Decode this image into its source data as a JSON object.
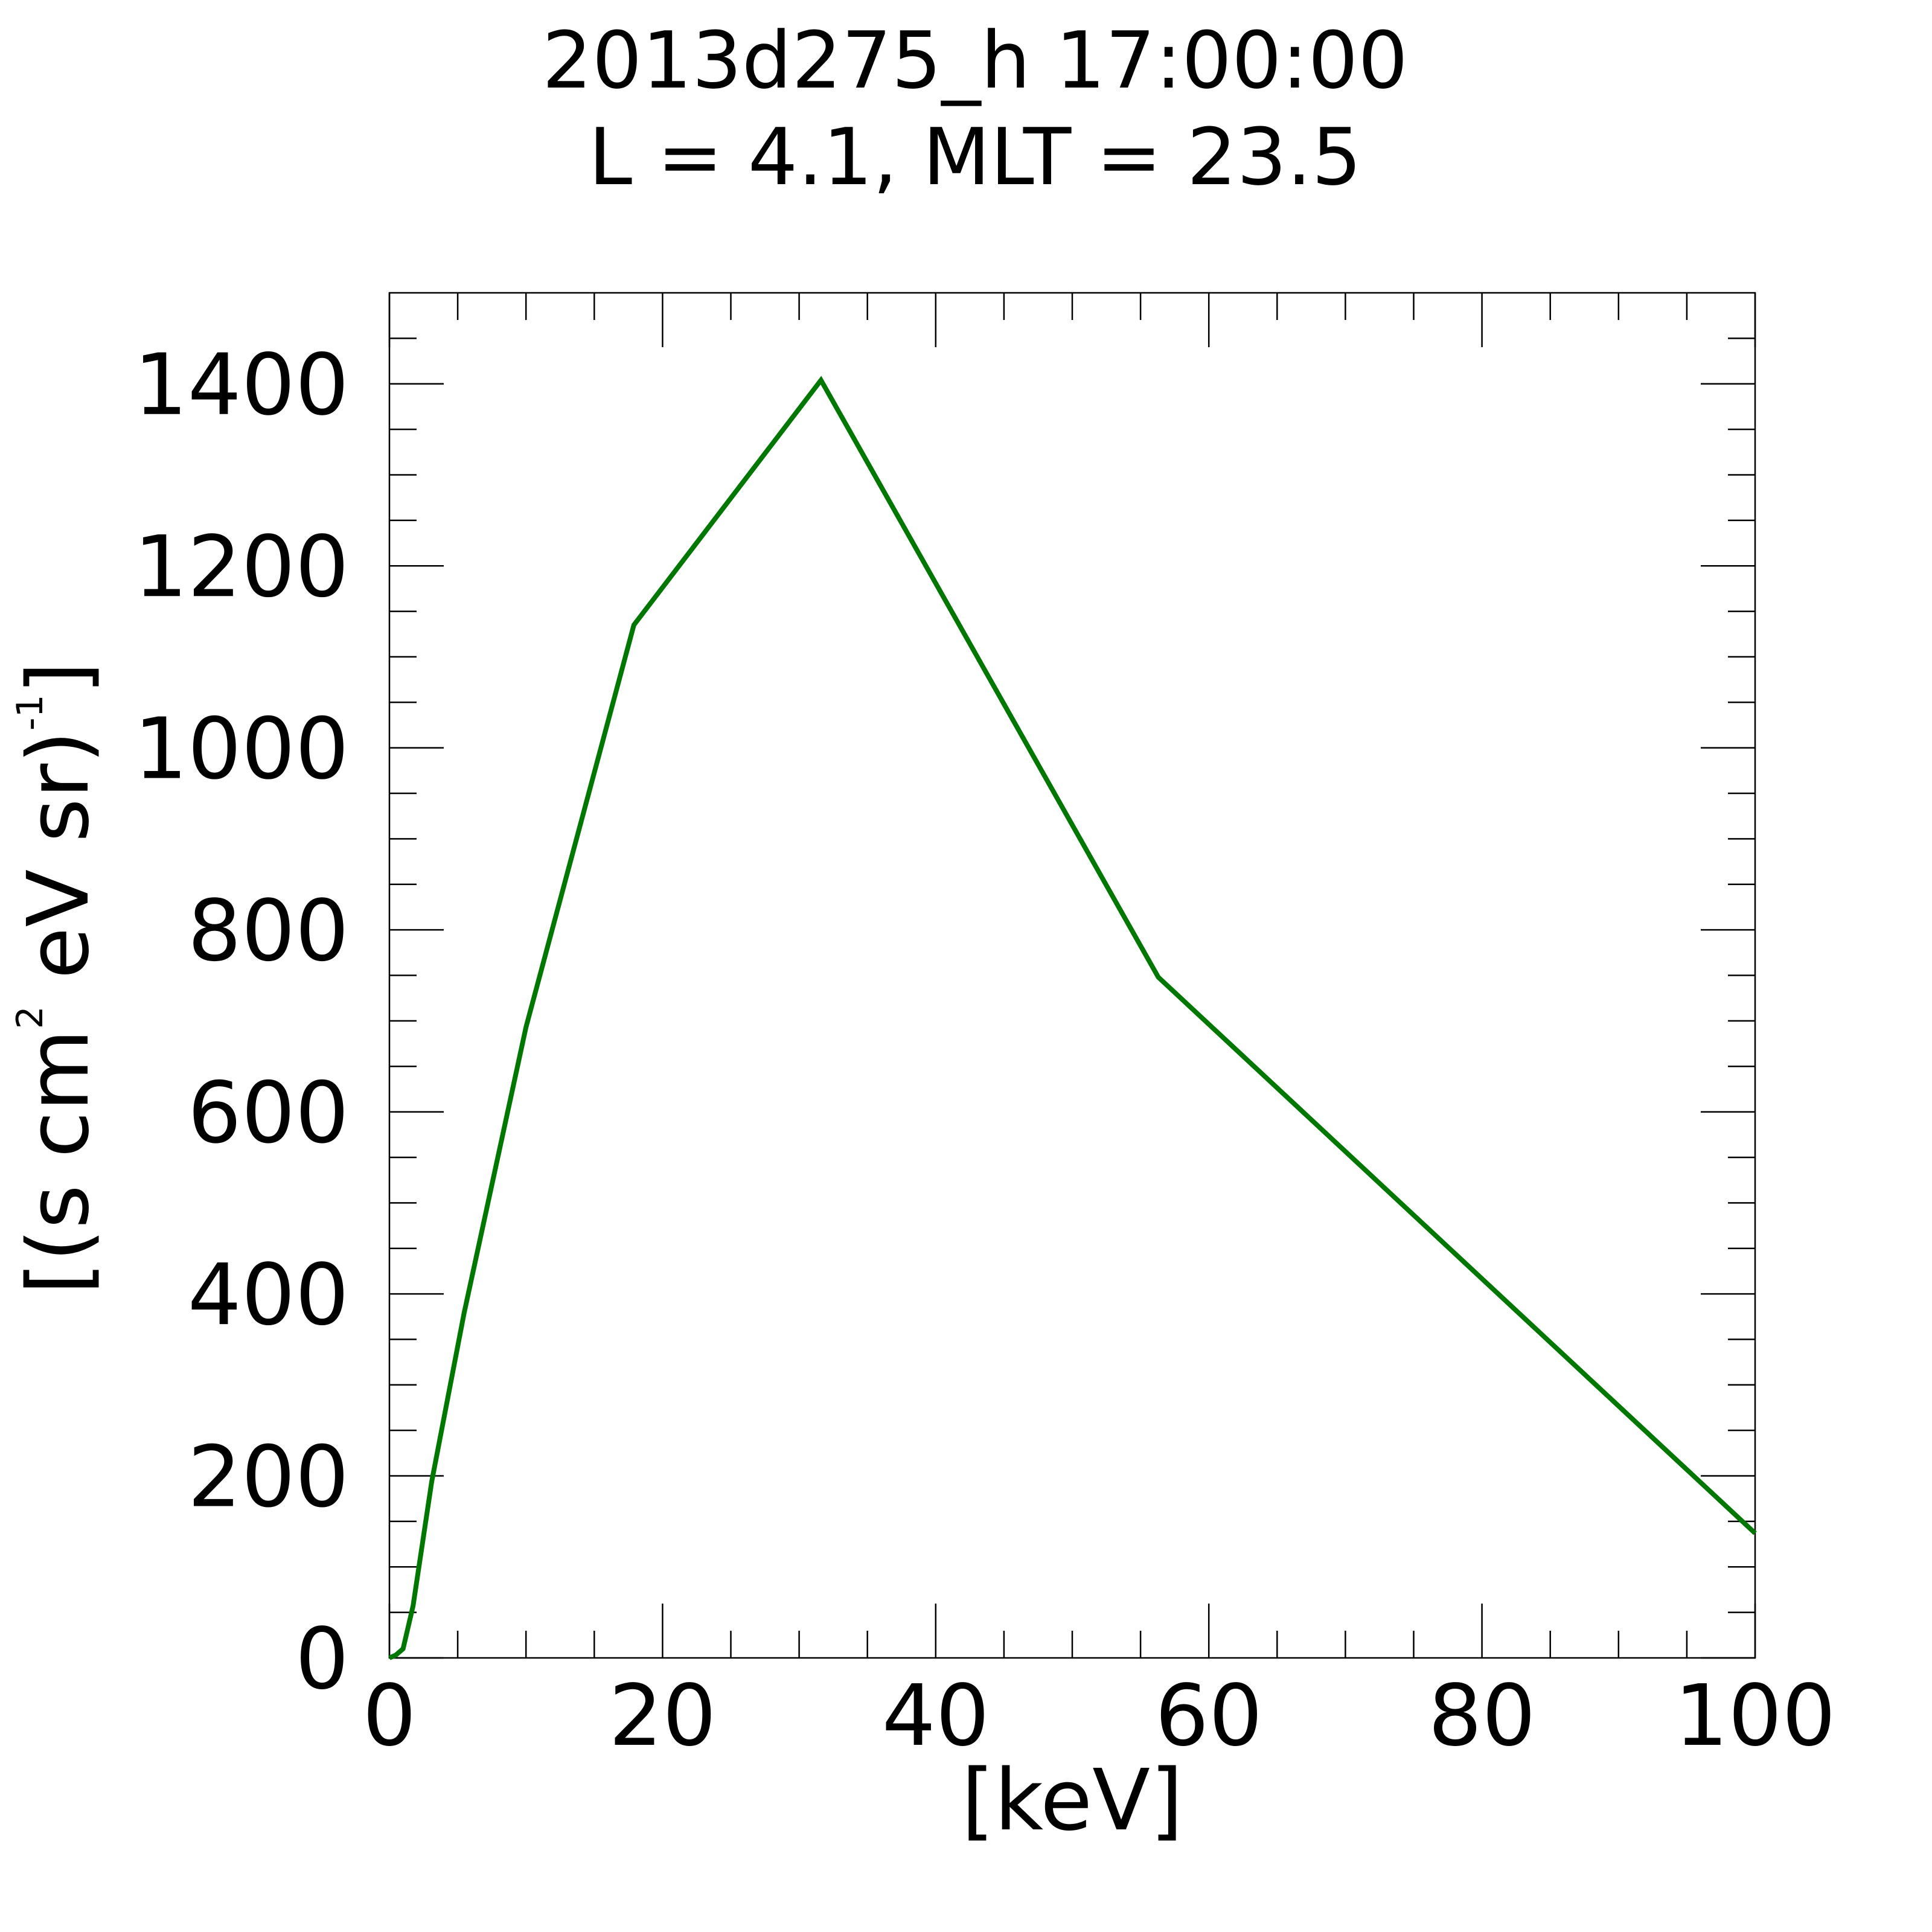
{
  "chart_data": {
    "type": "line",
    "title": "2013d275_h  17:00:00",
    "subtitle": "L = 4.1, MLT = 23.5",
    "x_label": "[keV]",
    "y_label": {
      "before": "[(s cm",
      "sup1": "2",
      "middle": " eV sr)",
      "sup2": "-1",
      "after": "]"
    },
    "series": [
      {
        "color": "#007700",
        "x": [
          0,
          0.46,
          1.0,
          1.73,
          3.1,
          5.47,
          10.0,
          17.9,
          31.6,
          56.3,
          100
        ],
        "values": [
          0,
          3,
          10,
          57,
          194,
          379,
          693,
          1135,
          1404,
          748,
          137
        ]
      }
    ],
    "xlim": [
      0,
      100
    ],
    "xticks": [
      0,
      20,
      40,
      60,
      80,
      100
    ],
    "xminorticks": [
      5,
      10,
      15,
      25,
      30,
      35,
      45,
      50,
      55,
      65,
      70,
      75,
      85,
      90,
      95
    ],
    "ylim": [
      0,
      1500
    ],
    "yticks": [
      0,
      200,
      400,
      600,
      800,
      1000,
      1200,
      1400
    ],
    "yminorticks": [
      50,
      100,
      150,
      250,
      300,
      350,
      450,
      500,
      550,
      650,
      700,
      750,
      850,
      900,
      950,
      1050,
      1100,
      1150,
      1250,
      1300,
      1350,
      1450
    ],
    "grid": false
  }
}
